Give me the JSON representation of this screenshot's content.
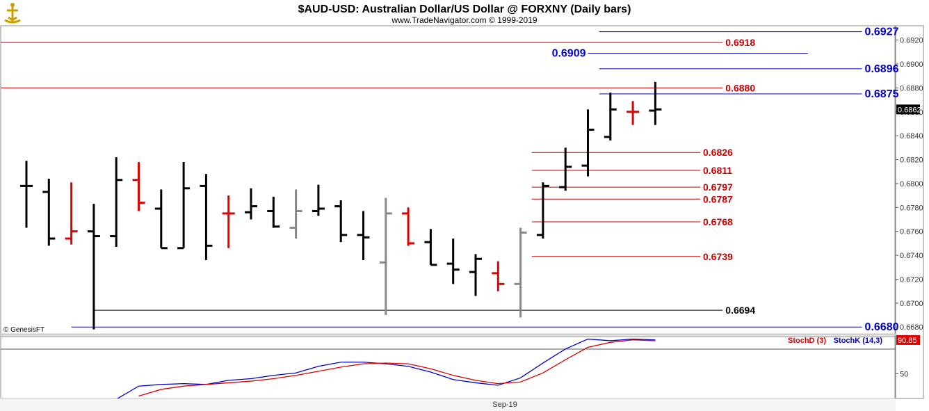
{
  "header": {
    "title": "$AUD-USD:  Australian Dollar/US Dollar @ FORXNY  (Daily bars)",
    "subtitle": "www.TradeNavigator.com © 1999-2019",
    "watermark": "© GenesisFT",
    "logo_icon": "genesis-logo-icon"
  },
  "colors": {
    "up_bar": "#000000",
    "down_bar": "#e00000",
    "neutral_bar": "#888888",
    "red_level": "#cc0000",
    "blue_level": "#0000cc",
    "black_level": "#000000",
    "stoch_d": "#dd0000",
    "stoch_k": "#0000cc",
    "last_price_bg": "#000000",
    "stoch_value_bg": "#dd0000"
  },
  "chart_data": [
    {
      "type": "ohlc",
      "title": "$AUD-USD:  Australian Dollar/US Dollar @ FORXNY  (Daily bars)",
      "ylim": [
        0.6672,
        0.6932
      ],
      "y_ticks": [
        "0.6920",
        "0.6900",
        "0.6880",
        "0.6860",
        "0.6840",
        "0.6820",
        "0.6800",
        "0.6780",
        "0.6760",
        "0.6740",
        "0.6720",
        "0.6700",
        "0.6680"
      ],
      "x_labels": [
        {
          "index": 21.3,
          "label": "Sep-19"
        }
      ],
      "last_price": "0.6862",
      "bars": [
        {
          "o": 0.6798,
          "h": 0.6819,
          "l": 0.6763,
          "c": 0.6798,
          "color": "black"
        },
        {
          "o": 0.6793,
          "h": 0.6804,
          "l": 0.6748,
          "c": 0.6754,
          "color": "black"
        },
        {
          "o": 0.6754,
          "h": 0.6801,
          "l": 0.6749,
          "c": 0.676,
          "color": "red"
        },
        {
          "o": 0.676,
          "h": 0.6783,
          "l": 0.6678,
          "c": 0.6756,
          "color": "black"
        },
        {
          "o": 0.6756,
          "h": 0.6822,
          "l": 0.6747,
          "c": 0.6803,
          "color": "black"
        },
        {
          "o": 0.6803,
          "h": 0.6818,
          "l": 0.6777,
          "c": 0.6784,
          "color": "red"
        },
        {
          "o": 0.6779,
          "h": 0.6795,
          "l": 0.6746,
          "c": 0.6746,
          "color": "black"
        },
        {
          "o": 0.6746,
          "h": 0.6818,
          "l": 0.6746,
          "c": 0.6796,
          "color": "black"
        },
        {
          "o": 0.6798,
          "h": 0.6808,
          "l": 0.6736,
          "c": 0.6748,
          "color": "black"
        },
        {
          "o": 0.6775,
          "h": 0.679,
          "l": 0.6746,
          "c": 0.6775,
          "color": "red"
        },
        {
          "o": 0.6776,
          "h": 0.6796,
          "l": 0.677,
          "c": 0.6781,
          "color": "black"
        },
        {
          "o": 0.6777,
          "h": 0.6789,
          "l": 0.6763,
          "c": 0.6764,
          "color": "black"
        },
        {
          "o": 0.6763,
          "h": 0.6795,
          "l": 0.6754,
          "c": 0.6777,
          "color": "gray"
        },
        {
          "o": 0.6777,
          "h": 0.6799,
          "l": 0.6773,
          "c": 0.6779,
          "color": "black"
        },
        {
          "o": 0.6781,
          "h": 0.6786,
          "l": 0.6751,
          "c": 0.6757,
          "color": "black"
        },
        {
          "o": 0.6757,
          "h": 0.6777,
          "l": 0.6736,
          "c": 0.6755,
          "color": "black"
        },
        {
          "o": 0.6734,
          "h": 0.6788,
          "l": 0.669,
          "c": 0.6775,
          "color": "gray"
        },
        {
          "o": 0.6775,
          "h": 0.678,
          "l": 0.6748,
          "c": 0.675,
          "color": "red"
        },
        {
          "o": 0.6751,
          "h": 0.6762,
          "l": 0.6732,
          "c": 0.6732,
          "color": "black"
        },
        {
          "o": 0.6733,
          "h": 0.6754,
          "l": 0.6716,
          "c": 0.6728,
          "color": "black"
        },
        {
          "o": 0.6726,
          "h": 0.6741,
          "l": 0.6706,
          "c": 0.6737,
          "color": "black"
        },
        {
          "o": 0.6725,
          "h": 0.6735,
          "l": 0.671,
          "c": 0.6716,
          "color": "red"
        },
        {
          "o": 0.6716,
          "h": 0.6763,
          "l": 0.6688,
          "c": 0.6759,
          "color": "gray"
        },
        {
          "o": 0.6757,
          "h": 0.6801,
          "l": 0.6754,
          "c": 0.6798,
          "color": "black"
        },
        {
          "o": 0.6797,
          "h": 0.683,
          "l": 0.6794,
          "c": 0.6814,
          "color": "black"
        },
        {
          "o": 0.6815,
          "h": 0.6862,
          "l": 0.6806,
          "c": 0.6845,
          "color": "black"
        },
        {
          "o": 0.6839,
          "h": 0.6876,
          "l": 0.6836,
          "c": 0.6862,
          "color": "black"
        },
        {
          "o": 0.686,
          "h": 0.6869,
          "l": 0.6849,
          "c": 0.686,
          "color": "red"
        },
        {
          "o": 0.6861,
          "h": 0.6885,
          "l": 0.6849,
          "c": 0.6862,
          "color": "black"
        }
      ],
      "levels": [
        {
          "value": 0.6927,
          "label": "0.6927",
          "color": "blue",
          "start": 25.5,
          "end": 37.2,
          "label_side": "right",
          "big": true
        },
        {
          "value": 0.6918,
          "label": "0.6918",
          "color": "red",
          "start": -4.0,
          "end": 31.0,
          "label_side": "right",
          "big": false
        },
        {
          "value": 0.6909,
          "label": "0.6909",
          "color": "blue",
          "start": 25.0,
          "end": 34.8,
          "label_side": "left",
          "big": true
        },
        {
          "value": 0.6896,
          "label": "0.6896",
          "color": "blue",
          "start": 25.5,
          "end": 37.2,
          "label_side": "right",
          "big": true
        },
        {
          "value": 0.688,
          "label": "0.6880",
          "color": "red",
          "start": -4.0,
          "end": 31.0,
          "label_side": "right",
          "big": false
        },
        {
          "value": 0.6875,
          "label": "0.6875",
          "color": "blue",
          "start": 25.5,
          "end": 37.2,
          "label_side": "right",
          "big": true
        },
        {
          "value": 0.6826,
          "label": "0.6826",
          "color": "red",
          "start": 22.5,
          "end": 30.0,
          "label_side": "right",
          "big": false
        },
        {
          "value": 0.6811,
          "label": "0.6811",
          "color": "red",
          "start": 22.5,
          "end": 30.0,
          "label_side": "right",
          "big": false
        },
        {
          "value": 0.6797,
          "label": "0.6797",
          "color": "red",
          "start": 22.5,
          "end": 30.0,
          "label_side": "right",
          "big": false
        },
        {
          "value": 0.6787,
          "label": "0.6787",
          "color": "red",
          "start": 22.5,
          "end": 30.0,
          "label_side": "right",
          "big": false
        },
        {
          "value": 0.6768,
          "label": "0.6768",
          "color": "red",
          "start": 22.5,
          "end": 30.0,
          "label_side": "right",
          "big": false
        },
        {
          "value": 0.6739,
          "label": "0.6739",
          "color": "red",
          "start": 22.5,
          "end": 30.0,
          "label_side": "right",
          "big": false
        },
        {
          "value": 0.6694,
          "label": "0.6694",
          "color": "black",
          "start": 3.0,
          "end": 31.0,
          "label_side": "right",
          "big": false
        },
        {
          "value": 0.668,
          "label": "0.6680",
          "color": "blue",
          "start": 2.0,
          "end": 37.2,
          "label_side": "right",
          "big": true
        }
      ]
    },
    {
      "type": "line",
      "legend": [
        {
          "name": "StochD (3)",
          "color": "red"
        },
        {
          "name": "StochK (14,3)",
          "color": "blue"
        }
      ],
      "y_ticks": [
        "50"
      ],
      "ylim": [
        20,
        95
      ],
      "last_value": "90.85",
      "series": [
        {
          "name": "StochK (14,3)",
          "color": "blue",
          "x": [
            4,
            5,
            6,
            7,
            8,
            9,
            10,
            11,
            12,
            13,
            14,
            15,
            16,
            17,
            18,
            19,
            20,
            21,
            22,
            23,
            24,
            25,
            26,
            27,
            28
          ],
          "values": [
            19,
            35,
            37,
            38,
            37,
            42,
            44,
            48,
            51,
            59,
            64,
            64,
            62,
            59,
            52,
            43,
            39,
            36,
            45,
            63,
            80,
            92,
            90,
            92,
            91
          ]
        },
        {
          "name": "StochD (3)",
          "color": "red",
          "x": [
            5,
            6,
            7,
            8,
            9,
            10,
            11,
            12,
            13,
            14,
            15,
            16,
            17,
            18,
            19,
            20,
            21,
            22,
            23,
            24,
            25,
            26,
            27,
            28
          ],
          "values": [
            23,
            31,
            35,
            37,
            39,
            41,
            44,
            48,
            53,
            58,
            62,
            63,
            62,
            56,
            48,
            42,
            38,
            40,
            51,
            67,
            82,
            88,
            91,
            90
          ]
        }
      ]
    }
  ]
}
